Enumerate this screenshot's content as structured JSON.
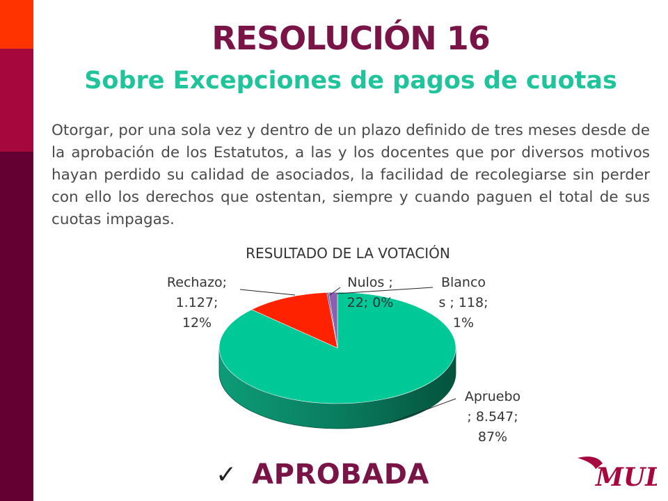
{
  "slide": {
    "title": "RESOLUCIÓN 16",
    "subtitle": "Sobre Excepciones de pagos de cuotas",
    "body": "Otorgar, por una sola vez y dentro de un plazo definido de tres meses desde de la aprobación de los Estatutos, a las y los docentes que por diversos motivos hayan perdido su calidad de asociados, la facilidad de recolegiarse sin perder con ello los derechos que ostentan, siempre y cuando paguen el total de sus cuotas impagas.",
    "result_check_icon": "checkmark-icon",
    "result_label": "APROBADA",
    "logo_text": "MUD",
    "colors": {
      "title": "#7a1446",
      "subtitle": "#20c49a",
      "sidebar": [
        "#ff3300",
        "#a6073d",
        "#640032"
      ]
    }
  },
  "chart_data": {
    "type": "pie",
    "style": "3d",
    "title": "RESULTADO DE LA VOTACIÓN",
    "slices": [
      {
        "name": "Apruebo",
        "value": 8547,
        "percent": 87,
        "color": "#00c897",
        "label_lines": [
          "Apruebo",
          "; 8.547;",
          "87%"
        ]
      },
      {
        "name": "Rechazo",
        "value": 1127,
        "percent": 12,
        "color": "#ff2200",
        "label_lines": [
          "Rechazo;",
          "1.127;",
          "12%"
        ]
      },
      {
        "name": "Nulos",
        "value": 22,
        "percent": 0,
        "color": "#3a50b0",
        "label_lines": [
          "Nulos ;",
          "22; 0%"
        ]
      },
      {
        "name": "Blancos",
        "value": 118,
        "percent": 1,
        "color": "#8e5fae",
        "label_lines": [
          "Blanco",
          "s ; 118;",
          "1%"
        ]
      }
    ]
  }
}
